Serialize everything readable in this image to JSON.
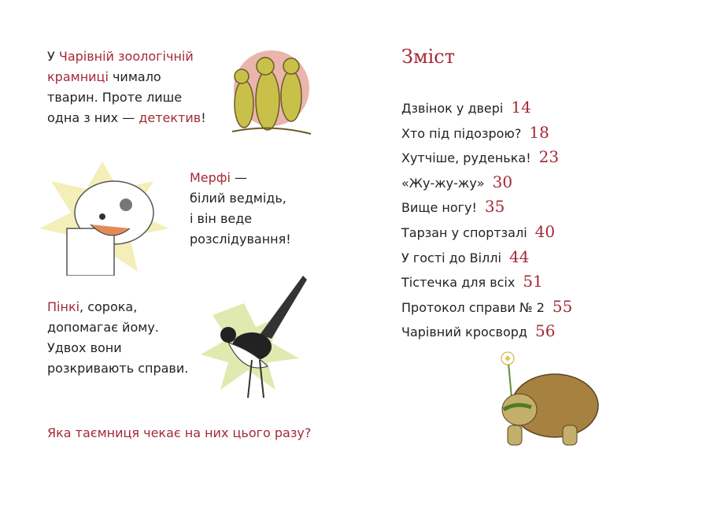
{
  "left": {
    "intro": {
      "l1_a": "У ",
      "l1_b": "Чарівній зоологічній",
      "l2_a": "крамниці",
      "l2_b": " чимало",
      "l3": "тварин. Проте лише",
      "l4_a": "одна з них — ",
      "l4_b": "детектив",
      "l4_c": "!"
    },
    "murphy": {
      "l1_a": "Мерфі",
      "l1_b": " —",
      "l2": "білий ведмідь,",
      "l3": "і він веде",
      "l4": "розслідування!"
    },
    "pinky": {
      "l1_a": "Пінкі",
      "l1_b": ", сорока,",
      "l2": "допомагає йому.",
      "l3": "Удвох вони",
      "l4": "розкривають справи."
    },
    "question": "Яка таємниця чекає на них цього разу?"
  },
  "toc": {
    "title": "Зміст",
    "items": [
      {
        "label": "Дзвінок у двері",
        "page": "14"
      },
      {
        "label": "Хто під підозрою?",
        "page": "18"
      },
      {
        "label": "Хутчіше, руденька!",
        "page": "23"
      },
      {
        "label": "«Жу-жу-жу»",
        "page": "30"
      },
      {
        "label": "Вище ногу!",
        "page": "35"
      },
      {
        "label": "Тарзан у спортзалі",
        "page": "40"
      },
      {
        "label": "У гості до Віллі",
        "page": "44"
      },
      {
        "label": "Тістечка для всіх",
        "page": "51"
      },
      {
        "label": "Протокол справи № 2",
        "page": "55"
      },
      {
        "label": "Чарівний кросворд",
        "page": "56"
      }
    ]
  },
  "colors": {
    "accent": "#a32a36"
  }
}
